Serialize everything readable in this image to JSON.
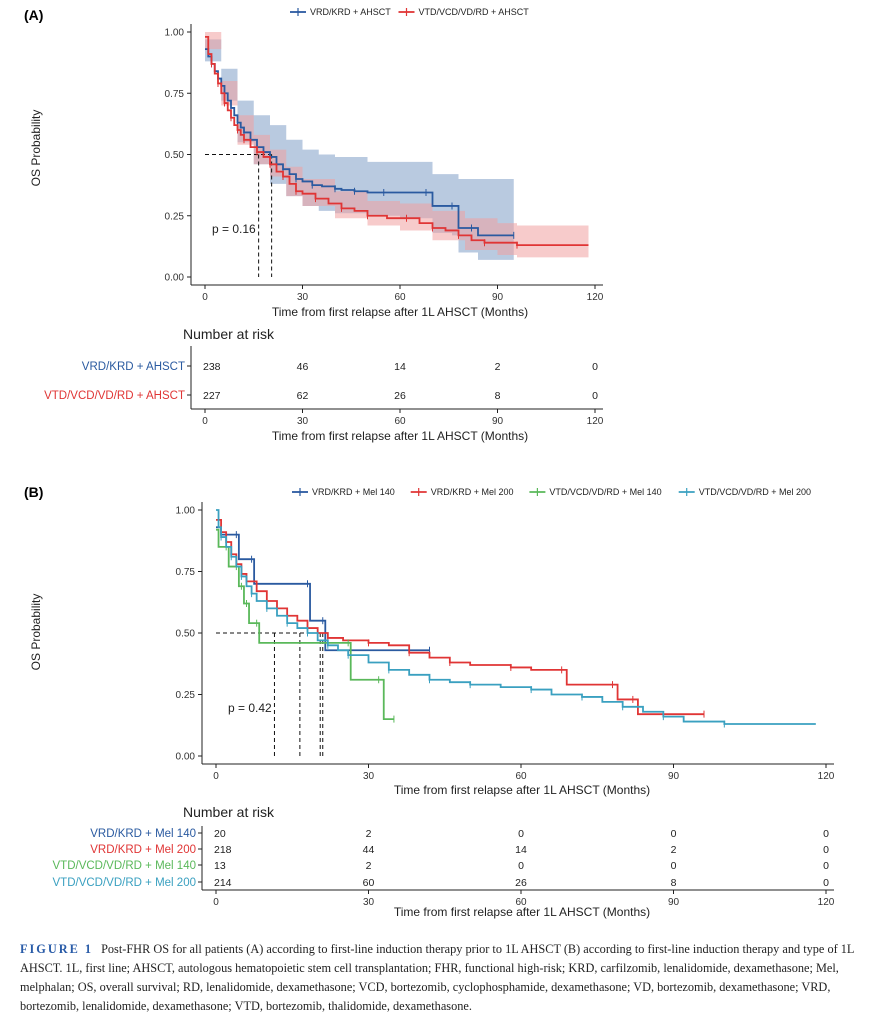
{
  "caption": {
    "label": "FIGURE 1",
    "text": "Post-FHR OS for all patients (A) according to first-line induction therapy prior to 1L AHSCT (B) according to first-line induction therapy and type of 1L AHSCT. 1L, first line; AHSCT, autologous hematopoietic stem cell transplantation; FHR, functional high-risk; KRD, carfilzomib, lenalidomide, dexamethasone; Mel, melphalan; OS, overall survival; RD, lenalidomide, dexamethasone; VCD, bortezomib, cyclophosphamide, dexamethasone; VD, bortezomib, dexamethasone; VRD, bortezomib, lenalidomide, dexamethasone; VTD, bortezomib, thalidomide, dexamethasone."
  },
  "chart_data": [
    {
      "panel": "(A)",
      "type": "line",
      "xlabel": "Time from first relapse after 1L AHSCT (Months)",
      "ylabel": "OS Probability",
      "xlim": [
        0,
        120
      ],
      "ylim": [
        0,
        1
      ],
      "xticks": [
        0,
        30,
        60,
        90,
        120
      ],
      "yticks": [
        "0.00",
        "0.25",
        "0.50",
        "0.75",
        "1.00"
      ],
      "annotation": "p = 0.16",
      "median_lines": [
        16.5,
        20.5
      ],
      "legend_position": "top",
      "risk_table_title": "Number at risk",
      "risk_times": [
        0,
        30,
        60,
        90,
        120
      ],
      "series": [
        {
          "name": "VRD/KRD + AHSCT",
          "color": "#2a5aa0",
          "ci_color": "#7f9ec6",
          "points": [
            [
              0,
              0.93
            ],
            [
              1,
              0.9
            ],
            [
              2,
              0.87
            ],
            [
              3,
              0.84
            ],
            [
              4,
              0.81
            ],
            [
              5,
              0.78
            ],
            [
              6,
              0.75
            ],
            [
              7,
              0.72
            ],
            [
              8,
              0.69
            ],
            [
              9,
              0.66
            ],
            [
              10,
              0.63
            ],
            [
              11,
              0.61
            ],
            [
              12,
              0.59
            ],
            [
              14,
              0.56
            ],
            [
              16,
              0.53
            ],
            [
              18,
              0.51
            ],
            [
              20,
              0.49
            ],
            [
              22,
              0.46
            ],
            [
              24,
              0.44
            ],
            [
              26,
              0.42
            ],
            [
              28,
              0.4
            ],
            [
              30,
              0.39
            ],
            [
              33,
              0.375
            ],
            [
              36,
              0.37
            ],
            [
              40,
              0.36
            ],
            [
              42,
              0.355
            ],
            [
              46,
              0.35
            ],
            [
              50,
              0.345
            ],
            [
              55,
              0.345
            ],
            [
              60,
              0.345
            ],
            [
              68,
              0.345
            ],
            [
              70,
              0.29
            ],
            [
              76,
              0.29
            ],
            [
              78,
              0.2
            ],
            [
              82,
              0.2
            ],
            [
              84,
              0.17
            ],
            [
              95,
              0.17
            ]
          ],
          "ci_upper": [
            [
              0,
              0.97
            ],
            [
              5,
              0.85
            ],
            [
              10,
              0.72
            ],
            [
              15,
              0.66
            ],
            [
              20,
              0.62
            ],
            [
              25,
              0.56
            ],
            [
              30,
              0.52
            ],
            [
              35,
              0.5
            ],
            [
              40,
              0.49
            ],
            [
              50,
              0.47
            ],
            [
              60,
              0.47
            ],
            [
              68,
              0.47
            ],
            [
              70,
              0.42
            ],
            [
              76,
              0.42
            ],
            [
              78,
              0.4
            ],
            [
              95,
              0.4
            ]
          ],
          "ci_lower": [
            [
              0,
              0.88
            ],
            [
              5,
              0.72
            ],
            [
              10,
              0.55
            ],
            [
              15,
              0.46
            ],
            [
              20,
              0.38
            ],
            [
              25,
              0.33
            ],
            [
              30,
              0.29
            ],
            [
              35,
              0.27
            ],
            [
              40,
              0.26
            ],
            [
              50,
              0.25
            ],
            [
              60,
              0.24
            ],
            [
              68,
              0.24
            ],
            [
              70,
              0.18
            ],
            [
              76,
              0.17
            ],
            [
              78,
              0.1
            ],
            [
              84,
              0.07
            ],
            [
              95,
              0.07
            ]
          ],
          "at_risk": [
            238,
            46,
            14,
            2,
            0
          ]
        },
        {
          "name": "VTD/VCD/VD/RD + AHSCT",
          "color": "#e03535",
          "ci_color": "#f0a0a0",
          "points": [
            [
              0,
              0.98
            ],
            [
              1,
              0.91
            ],
            [
              2,
              0.87
            ],
            [
              3,
              0.83
            ],
            [
              4,
              0.79
            ],
            [
              5,
              0.75
            ],
            [
              6,
              0.71
            ],
            [
              7,
              0.68
            ],
            [
              8,
              0.65
            ],
            [
              9,
              0.62
            ],
            [
              10,
              0.6
            ],
            [
              11,
              0.58
            ],
            [
              12,
              0.56
            ],
            [
              14,
              0.53
            ],
            [
              16,
              0.51
            ],
            [
              18,
              0.49
            ],
            [
              20,
              0.46
            ],
            [
              22,
              0.43
            ],
            [
              24,
              0.41
            ],
            [
              26,
              0.38
            ],
            [
              28,
              0.35
            ],
            [
              30,
              0.34
            ],
            [
              34,
              0.32
            ],
            [
              38,
              0.3
            ],
            [
              42,
              0.28
            ],
            [
              46,
              0.27
            ],
            [
              50,
              0.25
            ],
            [
              56,
              0.24
            ],
            [
              62,
              0.24
            ],
            [
              66,
              0.22
            ],
            [
              70,
              0.2
            ],
            [
              74,
              0.19
            ],
            [
              78,
              0.17
            ],
            [
              82,
              0.15
            ],
            [
              86,
              0.14
            ],
            [
              90,
              0.14
            ],
            [
              96,
              0.13
            ],
            [
              118,
              0.13
            ]
          ],
          "ci_upper": [
            [
              0,
              1.0
            ],
            [
              5,
              0.8
            ],
            [
              10,
              0.66
            ],
            [
              15,
              0.58
            ],
            [
              20,
              0.52
            ],
            [
              25,
              0.45
            ],
            [
              30,
              0.4
            ],
            [
              40,
              0.35
            ],
            [
              50,
              0.31
            ],
            [
              60,
              0.3
            ],
            [
              70,
              0.27
            ],
            [
              80,
              0.24
            ],
            [
              90,
              0.22
            ],
            [
              96,
              0.21
            ],
            [
              118,
              0.21
            ]
          ],
          "ci_lower": [
            [
              0,
              0.93
            ],
            [
              5,
              0.7
            ],
            [
              10,
              0.54
            ],
            [
              15,
              0.46
            ],
            [
              20,
              0.41
            ],
            [
              25,
              0.33
            ],
            [
              30,
              0.29
            ],
            [
              40,
              0.24
            ],
            [
              50,
              0.21
            ],
            [
              60,
              0.19
            ],
            [
              70,
              0.15
            ],
            [
              80,
              0.11
            ],
            [
              90,
              0.09
            ],
            [
              96,
              0.08
            ],
            [
              118,
              0.08
            ]
          ],
          "at_risk": [
            227,
            62,
            26,
            8,
            0
          ]
        }
      ]
    },
    {
      "panel": "(B)",
      "type": "line",
      "xlabel": "Time from first relapse after 1L AHSCT (Months)",
      "ylabel": "OS Probability",
      "xlim": [
        0,
        120
      ],
      "ylim": [
        0,
        1
      ],
      "xticks": [
        0,
        30,
        60,
        90,
        120
      ],
      "yticks": [
        "0.00",
        "0.25",
        "0.50",
        "0.75",
        "1.00"
      ],
      "annotation": "p = 0.42",
      "median_lines": [
        11.5,
        16.5,
        20.5,
        21
      ],
      "legend_position": "top",
      "risk_table_title": "Number at risk",
      "risk_times": [
        0,
        30,
        60,
        90,
        120
      ],
      "series": [
        {
          "name": "VRD/KRD + Mel 140",
          "color": "#2a5aa0",
          "points": [
            [
              0,
              0.93
            ],
            [
              1,
              0.9
            ],
            [
              4,
              0.9
            ],
            [
              4.5,
              0.8
            ],
            [
              7,
              0.8
            ],
            [
              7.5,
              0.7
            ],
            [
              18,
              0.7
            ],
            [
              18.5,
              0.55
            ],
            [
              21,
              0.55
            ],
            [
              21.5,
              0.43
            ],
            [
              42,
              0.43
            ]
          ],
          "at_risk": [
            20,
            2,
            0,
            0,
            0
          ]
        },
        {
          "name": "VRD/KRD + Mel 200",
          "color": "#e03535",
          "points": [
            [
              0,
              0.96
            ],
            [
              1,
              0.91
            ],
            [
              2,
              0.87
            ],
            [
              3,
              0.82
            ],
            [
              4,
              0.78
            ],
            [
              5,
              0.74
            ],
            [
              6,
              0.71
            ],
            [
              8,
              0.67
            ],
            [
              10,
              0.63
            ],
            [
              12,
              0.6
            ],
            [
              14,
              0.57
            ],
            [
              16,
              0.55
            ],
            [
              18,
              0.52
            ],
            [
              20,
              0.5
            ],
            [
              22,
              0.48
            ],
            [
              25,
              0.47
            ],
            [
              30,
              0.46
            ],
            [
              34,
              0.45
            ],
            [
              38,
              0.42
            ],
            [
              42,
              0.4
            ],
            [
              46,
              0.38
            ],
            [
              50,
              0.37
            ],
            [
              58,
              0.36
            ],
            [
              62,
              0.35
            ],
            [
              68,
              0.35
            ],
            [
              69,
              0.29
            ],
            [
              78,
              0.29
            ],
            [
              79,
              0.23
            ],
            [
              82,
              0.23
            ],
            [
              83,
              0.17
            ],
            [
              96,
              0.17
            ]
          ],
          "at_risk": [
            218,
            44,
            14,
            2,
            0
          ]
        },
        {
          "name": "VTD/VCD/VD/RD + Mel 140",
          "color": "#5ab85a",
          "points": [
            [
              0,
              0.92
            ],
            [
              0.5,
              0.85
            ],
            [
              2,
              0.85
            ],
            [
              2.5,
              0.77
            ],
            [
              4,
              0.77
            ],
            [
              4.5,
              0.69
            ],
            [
              5,
              0.69
            ],
            [
              5.5,
              0.62
            ],
            [
              6,
              0.62
            ],
            [
              6.5,
              0.54
            ],
            [
              8,
              0.54
            ],
            [
              8.5,
              0.46
            ],
            [
              26,
              0.46
            ],
            [
              26.5,
              0.31
            ],
            [
              32,
              0.31
            ],
            [
              33,
              0.15
            ],
            [
              35,
              0.15
            ]
          ],
          "at_risk": [
            13,
            2,
            0,
            0,
            0
          ]
        },
        {
          "name": "VTD/VCD/VD/RD + Mel 200",
          "color": "#3aa0c0",
          "points": [
            [
              0,
              1.0
            ],
            [
              0.5,
              0.93
            ],
            [
              1,
              0.89
            ],
            [
              2,
              0.85
            ],
            [
              3,
              0.81
            ],
            [
              4,
              0.77
            ],
            [
              5,
              0.73
            ],
            [
              6,
              0.69
            ],
            [
              7,
              0.66
            ],
            [
              8,
              0.63
            ],
            [
              10,
              0.6
            ],
            [
              12,
              0.57
            ],
            [
              14,
              0.54
            ],
            [
              16,
              0.52
            ],
            [
              18,
              0.5
            ],
            [
              20,
              0.47
            ],
            [
              22,
              0.45
            ],
            [
              24,
              0.43
            ],
            [
              26,
              0.41
            ],
            [
              30,
              0.38
            ],
            [
              34,
              0.35
            ],
            [
              38,
              0.33
            ],
            [
              42,
              0.31
            ],
            [
              46,
              0.3
            ],
            [
              50,
              0.29
            ],
            [
              56,
              0.28
            ],
            [
              62,
              0.27
            ],
            [
              66,
              0.25
            ],
            [
              72,
              0.24
            ],
            [
              76,
              0.22
            ],
            [
              80,
              0.2
            ],
            [
              84,
              0.18
            ],
            [
              88,
              0.16
            ],
            [
              92,
              0.14
            ],
            [
              100,
              0.13
            ],
            [
              118,
              0.13
            ]
          ],
          "at_risk": [
            214,
            60,
            26,
            8,
            0
          ]
        }
      ]
    }
  ]
}
